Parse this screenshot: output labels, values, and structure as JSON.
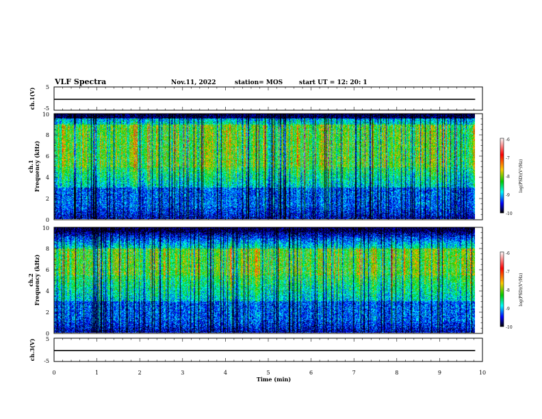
{
  "header": {
    "title": "VLF Spectra",
    "date": "Nov.11, 2022",
    "station": "station= MOS",
    "start": "start  UT =   12: 20: 1"
  },
  "chart_data": [
    {
      "type": "line",
      "id": "ch1-waveform",
      "ylabel": "ch.1(V)",
      "ylim": [
        -5,
        5
      ],
      "yticks": [
        "5",
        "-5"
      ],
      "x_range_min": [
        0,
        9.83
      ],
      "level": -0.3
    },
    {
      "type": "heatmap",
      "id": "ch1-spectrogram",
      "ylabel_line1": "ch.1",
      "ylabel_line2": "Frequency (kHz)",
      "ylim": [
        0,
        10
      ],
      "yticks": [
        "0",
        "2",
        "4",
        "6",
        "8",
        "10"
      ],
      "x_range_min": [
        0,
        9.83
      ],
      "intense_band_khz": [
        5.0,
        9.0
      ],
      "colorbar": {
        "label": "log(PSD)(V²/Hz)",
        "range": [
          -10,
          -6
        ],
        "ticks": [
          "-6",
          "-7",
          "-8",
          "-9",
          "-10"
        ],
        "colors": [
          "#ffffff",
          "#ff0000",
          "#ffcc00",
          "#00cc00",
          "#00ffff",
          "#0000ff",
          "#000000"
        ]
      }
    },
    {
      "type": "heatmap",
      "id": "ch2-spectrogram",
      "ylabel_line1": "ch.2",
      "ylabel_line2": "Frequency (kHz)",
      "ylim": [
        0,
        10
      ],
      "yticks": [
        "0",
        "2",
        "4",
        "6",
        "8",
        "10"
      ],
      "x_range_min": [
        0,
        9.83
      ],
      "intense_band_khz": [
        5.5,
        8.0
      ],
      "colorbar": {
        "label": "log(PSD)(V²/Hz)",
        "range": [
          -10,
          -6
        ],
        "ticks": [
          "-6",
          "-7",
          "-8",
          "-9",
          "-10"
        ],
        "colors": [
          "#ffffff",
          "#ff0000",
          "#ffcc00",
          "#00cc00",
          "#00ffff",
          "#0000ff",
          "#000000"
        ]
      }
    },
    {
      "type": "line",
      "id": "ch3-waveform",
      "ylabel": "ch.3(V)",
      "ylim": [
        -5,
        5
      ],
      "yticks": [
        "5",
        "-5"
      ],
      "x_range_min": [
        0,
        9.83
      ],
      "level": -0.3
    }
  ],
  "xaxis": {
    "label": "Time  (min)",
    "ticks": [
      "0",
      "1",
      "2",
      "3",
      "4",
      "5",
      "6",
      "7",
      "8",
      "9",
      "10"
    ],
    "range": [
      0,
      10
    ]
  }
}
